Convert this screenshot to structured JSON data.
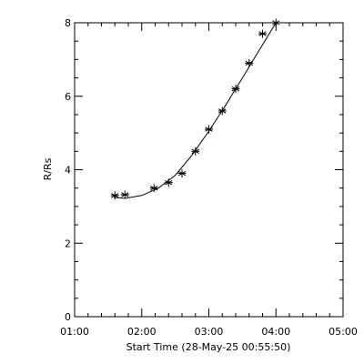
{
  "chart_data": {
    "type": "scatter",
    "xlabel": "Start Time (28-May-25 00:55:50)",
    "ylabel": "R/Rs",
    "x_tick_labels": [
      "01:00",
      "02:00",
      "03:00",
      "04:00",
      "05:00"
    ],
    "x_tick_values": [
      "01:00",
      "02:00",
      "03:00",
      "04:00",
      "05:00"
    ],
    "xlim": [
      "01:00",
      "05:00"
    ],
    "y_ticks": [
      0,
      2,
      4,
      6,
      8
    ],
    "ylim": [
      0,
      8
    ],
    "grid": false,
    "legend": "none",
    "series": [
      {
        "marker": "asterisk",
        "x": [
          "01:36",
          "01:45",
          "02:11",
          "02:24",
          "02:36",
          "02:48",
          "03:00",
          "03:12",
          "03:24",
          "03:36",
          "03:48",
          "04:00"
        ],
        "y": [
          3.3,
          3.32,
          3.5,
          3.65,
          3.9,
          4.5,
          5.1,
          5.6,
          6.2,
          6.9,
          7.7,
          8.0
        ]
      }
    ],
    "fit_curve": {
      "style": "solid-line",
      "x": [
        "01:35",
        "01:45",
        "02:00",
        "02:15",
        "02:30",
        "02:45",
        "03:00",
        "03:15",
        "03:30",
        "03:45",
        "04:00"
      ],
      "y": [
        3.25,
        3.22,
        3.3,
        3.5,
        3.85,
        4.4,
        5.05,
        5.75,
        6.5,
        7.25,
        8.0
      ]
    },
    "colors": {
      "foreground": "#000000",
      "background": "#ffffff"
    }
  }
}
